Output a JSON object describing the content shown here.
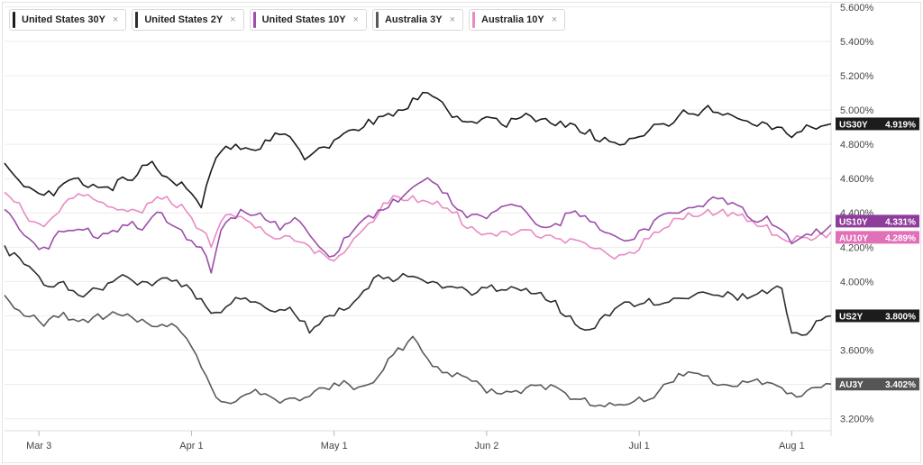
{
  "chart_data": {
    "type": "line",
    "x_ticks": [
      "Mar 3",
      "Apr 1",
      "May 1",
      "Jun 2",
      "Jul 1",
      "Aug 1"
    ],
    "y_ticks": [
      "3.200%",
      "3.400%",
      "3.600%",
      "3.800%",
      "4.000%",
      "4.200%",
      "4.400%",
      "4.600%",
      "4.800%",
      "5.000%",
      "5.200%",
      "5.400%",
      "5.600%"
    ],
    "ylim": [
      3.13,
      5.62
    ],
    "x_index_range": [
      0,
      168
    ],
    "x_tick_index": [
      7,
      38,
      67,
      98,
      129,
      160
    ],
    "grid": "horizontal",
    "legend_position": "top-left",
    "series": [
      {
        "name": "United States 30Y",
        "short": "US30Y",
        "last_label": "4.919%",
        "color": "#1c1c1c",
        "badge_color": "#1c1c1c",
        "anchors": [
          [
            0,
            4.69
          ],
          [
            5,
            4.55
          ],
          [
            10,
            4.5
          ],
          [
            14,
            4.6
          ],
          [
            20,
            4.55
          ],
          [
            26,
            4.59
          ],
          [
            30,
            4.7
          ],
          [
            33,
            4.61
          ],
          [
            36,
            4.58
          ],
          [
            40,
            4.43
          ],
          [
            43,
            4.72
          ],
          [
            47,
            4.8
          ],
          [
            50,
            4.77
          ],
          [
            54,
            4.82
          ],
          [
            57,
            4.86
          ],
          [
            61,
            4.71
          ],
          [
            64,
            4.78
          ],
          [
            68,
            4.84
          ],
          [
            72,
            4.88
          ],
          [
            76,
            4.96
          ],
          [
            80,
            5.0
          ],
          [
            84,
            5.06
          ],
          [
            86,
            5.1
          ],
          [
            90,
            5.0
          ],
          [
            94,
            4.93
          ],
          [
            98,
            4.96
          ],
          [
            102,
            4.9
          ],
          [
            106,
            4.98
          ],
          [
            110,
            4.95
          ],
          [
            114,
            4.9
          ],
          [
            118,
            4.86
          ],
          [
            122,
            4.84
          ],
          [
            126,
            4.8
          ],
          [
            130,
            4.85
          ],
          [
            134,
            4.92
          ],
          [
            138,
            5.0
          ],
          [
            142,
            5.0
          ],
          [
            146,
            4.97
          ],
          [
            150,
            4.94
          ],
          [
            154,
            4.93
          ],
          [
            157,
            4.9
          ],
          [
            160,
            4.84
          ],
          [
            164,
            4.9
          ],
          [
            168,
            4.919
          ]
        ]
      },
      {
        "name": "United States 2Y",
        "short": "US2Y",
        "last_label": "3.800%",
        "color": "#2e2e2e",
        "badge_color": "#1c1c1c",
        "anchors": [
          [
            0,
            4.21
          ],
          [
            4,
            4.1
          ],
          [
            8,
            3.98
          ],
          [
            12,
            4.0
          ],
          [
            16,
            3.91
          ],
          [
            20,
            3.95
          ],
          [
            24,
            4.04
          ],
          [
            28,
            4.0
          ],
          [
            32,
            4.02
          ],
          [
            36,
            3.97
          ],
          [
            40,
            3.9
          ],
          [
            43,
            3.82
          ],
          [
            46,
            3.87
          ],
          [
            50,
            3.88
          ],
          [
            54,
            3.83
          ],
          [
            58,
            3.85
          ],
          [
            62,
            3.7
          ],
          [
            64,
            3.75
          ],
          [
            67,
            3.8
          ],
          [
            71,
            3.88
          ],
          [
            75,
            4.02
          ],
          [
            79,
            4.0
          ],
          [
            83,
            4.03
          ],
          [
            87,
            4.0
          ],
          [
            91,
            3.97
          ],
          [
            95,
            3.92
          ],
          [
            99,
            3.98
          ],
          [
            103,
            3.97
          ],
          [
            107,
            3.93
          ],
          [
            111,
            3.88
          ],
          [
            115,
            3.8
          ],
          [
            119,
            3.72
          ],
          [
            123,
            3.8
          ],
          [
            127,
            3.88
          ],
          [
            131,
            3.9
          ],
          [
            135,
            3.88
          ],
          [
            139,
            3.9
          ],
          [
            143,
            3.93
          ],
          [
            147,
            3.94
          ],
          [
            151,
            3.9
          ],
          [
            155,
            3.93
          ],
          [
            158,
            3.96
          ],
          [
            160,
            3.7
          ],
          [
            164,
            3.72
          ],
          [
            168,
            3.8
          ]
        ]
      },
      {
        "name": "United States 10Y",
        "short": "US10Y",
        "last_label": "4.331%",
        "color": "#9c4ea9",
        "badge_color": "#8f3d9c",
        "anchors": [
          [
            0,
            4.42
          ],
          [
            4,
            4.27
          ],
          [
            8,
            4.2
          ],
          [
            12,
            4.29
          ],
          [
            16,
            4.3
          ],
          [
            20,
            4.28
          ],
          [
            24,
            4.33
          ],
          [
            28,
            4.3
          ],
          [
            32,
            4.4
          ],
          [
            36,
            4.3
          ],
          [
            40,
            4.2
          ],
          [
            42,
            4.05
          ],
          [
            44,
            4.3
          ],
          [
            48,
            4.42
          ],
          [
            52,
            4.4
          ],
          [
            56,
            4.3
          ],
          [
            60,
            4.35
          ],
          [
            64,
            4.2
          ],
          [
            67,
            4.15
          ],
          [
            71,
            4.3
          ],
          [
            75,
            4.37
          ],
          [
            79,
            4.48
          ],
          [
            83,
            4.55
          ],
          [
            87,
            4.58
          ],
          [
            91,
            4.45
          ],
          [
            95,
            4.39
          ],
          [
            99,
            4.4
          ],
          [
            103,
            4.45
          ],
          [
            107,
            4.37
          ],
          [
            111,
            4.32
          ],
          [
            115,
            4.4
          ],
          [
            119,
            4.35
          ],
          [
            123,
            4.28
          ],
          [
            127,
            4.24
          ],
          [
            131,
            4.3
          ],
          [
            135,
            4.4
          ],
          [
            139,
            4.43
          ],
          [
            143,
            4.47
          ],
          [
            147,
            4.45
          ],
          [
            151,
            4.38
          ],
          [
            155,
            4.38
          ],
          [
            158,
            4.3
          ],
          [
            160,
            4.22
          ],
          [
            164,
            4.27
          ],
          [
            168,
            4.331
          ]
        ]
      },
      {
        "name": "Australia 3Y",
        "short": "AU3Y",
        "last_label": "3.402%",
        "color": "#5a5a5a",
        "badge_color": "#555555",
        "anchors": [
          [
            0,
            3.92
          ],
          [
            4,
            3.8
          ],
          [
            8,
            3.74
          ],
          [
            12,
            3.82
          ],
          [
            16,
            3.78
          ],
          [
            20,
            3.78
          ],
          [
            24,
            3.8
          ],
          [
            28,
            3.78
          ],
          [
            32,
            3.75
          ],
          [
            36,
            3.7
          ],
          [
            38,
            3.62
          ],
          [
            41,
            3.45
          ],
          [
            44,
            3.3
          ],
          [
            47,
            3.3
          ],
          [
            50,
            3.35
          ],
          [
            54,
            3.33
          ],
          [
            58,
            3.32
          ],
          [
            62,
            3.33
          ],
          [
            66,
            3.37
          ],
          [
            70,
            3.4
          ],
          [
            74,
            3.4
          ],
          [
            78,
            3.55
          ],
          [
            81,
            3.6
          ],
          [
            83,
            3.68
          ],
          [
            86,
            3.55
          ],
          [
            90,
            3.47
          ],
          [
            94,
            3.44
          ],
          [
            98,
            3.35
          ],
          [
            102,
            3.36
          ],
          [
            106,
            3.38
          ],
          [
            110,
            3.37
          ],
          [
            114,
            3.35
          ],
          [
            118,
            3.32
          ],
          [
            122,
            3.27
          ],
          [
            126,
            3.28
          ],
          [
            130,
            3.3
          ],
          [
            134,
            3.4
          ],
          [
            138,
            3.45
          ],
          [
            142,
            3.45
          ],
          [
            146,
            3.4
          ],
          [
            150,
            3.42
          ],
          [
            154,
            3.4
          ],
          [
            158,
            3.38
          ],
          [
            160,
            3.35
          ],
          [
            164,
            3.38
          ],
          [
            168,
            3.402
          ]
        ]
      },
      {
        "name": "Australia 10Y",
        "short": "AU10Y",
        "last_label": "4.289%",
        "color": "#e88bc4",
        "badge_color": "#e070b8",
        "anchors": [
          [
            0,
            4.52
          ],
          [
            4,
            4.4
          ],
          [
            8,
            4.32
          ],
          [
            12,
            4.45
          ],
          [
            16,
            4.5
          ],
          [
            20,
            4.46
          ],
          [
            24,
            4.42
          ],
          [
            28,
            4.4
          ],
          [
            32,
            4.48
          ],
          [
            36,
            4.45
          ],
          [
            40,
            4.3
          ],
          [
            42,
            4.2
          ],
          [
            44,
            4.35
          ],
          [
            48,
            4.38
          ],
          [
            52,
            4.32
          ],
          [
            56,
            4.25
          ],
          [
            60,
            4.23
          ],
          [
            64,
            4.18
          ],
          [
            67,
            4.12
          ],
          [
            71,
            4.25
          ],
          [
            75,
            4.35
          ],
          [
            79,
            4.5
          ],
          [
            83,
            4.5
          ],
          [
            87,
            4.45
          ],
          [
            91,
            4.4
          ],
          [
            95,
            4.32
          ],
          [
            99,
            4.28
          ],
          [
            103,
            4.27
          ],
          [
            107,
            4.3
          ],
          [
            111,
            4.27
          ],
          [
            115,
            4.25
          ],
          [
            119,
            4.2
          ],
          [
            123,
            4.15
          ],
          [
            127,
            4.17
          ],
          [
            131,
            4.25
          ],
          [
            135,
            4.32
          ],
          [
            139,
            4.4
          ],
          [
            143,
            4.42
          ],
          [
            147,
            4.38
          ],
          [
            151,
            4.35
          ],
          [
            155,
            4.33
          ],
          [
            158,
            4.25
          ],
          [
            160,
            4.23
          ],
          [
            164,
            4.24
          ],
          [
            168,
            4.289
          ]
        ]
      }
    ]
  }
}
